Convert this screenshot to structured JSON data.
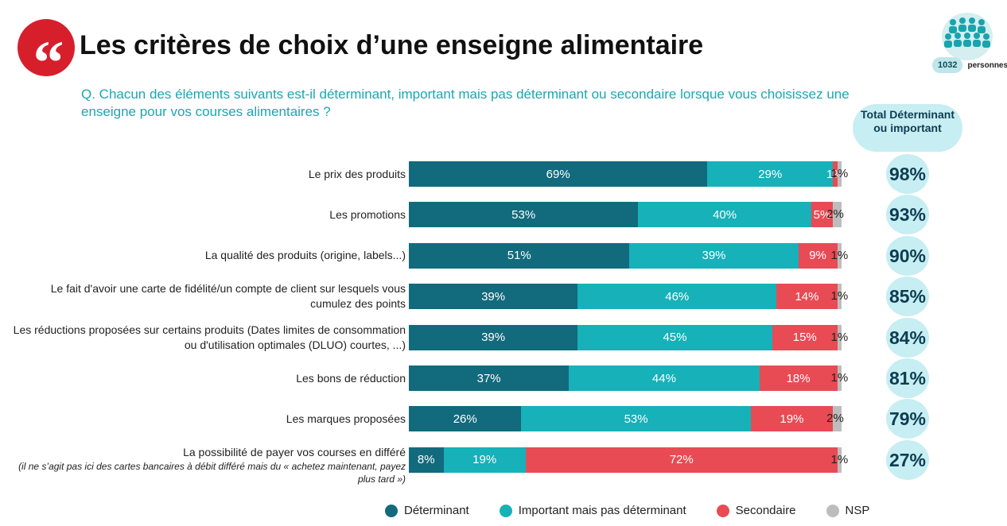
{
  "header": {
    "title": "Les critères de choix d’une enseigne alimentaire",
    "question": "Q. Chacun des éléments suivants est-il déterminant, important mais pas déterminant ou secondaire lorsque vous choisissez une enseigne pour vos courses alimentaires ?",
    "sample_count": "1032",
    "sample_label": "personnes",
    "total_header": "Total Déterminant ou important"
  },
  "colors": {
    "determinant": "#126a7d",
    "important": "#16b1b9",
    "secondaire": "#e84b54",
    "nsp": "#bdbdbd"
  },
  "chart_data": {
    "type": "bar",
    "orientation": "horizontal",
    "stacked": true,
    "title": "Les critères de choix d’une enseigne alimentaire",
    "series_names": [
      "Déterminant",
      "Important mais pas déterminant",
      "Secondaire",
      "NSP"
    ],
    "categories": [
      "Le prix des produits",
      "Les promotions",
      "La qualité des produits (origine, labels...)",
      "Le fait d'avoir une carte de fidélité/un compte de client sur lesquels vous cumulez des points",
      "Les réductions proposées sur certains produits (Dates limites de consommation ou d'utilisation optimales (DLUO) courtes, ...)",
      "Les bons de réduction",
      "Les marques proposées",
      "La possibilité de payer vos courses en différé"
    ],
    "rows": [
      {
        "label": "Le prix des produits",
        "sub": "",
        "values": [
          69,
          29,
          1,
          1
        ],
        "labels": [
          "69%",
          "29%",
          "1%",
          "1%"
        ],
        "total": "98%"
      },
      {
        "label": "Les promotions",
        "sub": "",
        "values": [
          53,
          40,
          5,
          2
        ],
        "labels": [
          "53%",
          "40%",
          "5%",
          "2%"
        ],
        "total": "93%"
      },
      {
        "label": "La qualité des produits (origine, labels...)",
        "sub": "",
        "values": [
          51,
          39,
          9,
          1
        ],
        "labels": [
          "51%",
          "39%",
          "9%",
          "1%"
        ],
        "total": "90%"
      },
      {
        "label": "Le fait d'avoir une carte de fidélité/un compte de client sur lesquels vous cumulez des points",
        "sub": "",
        "values": [
          39,
          46,
          14,
          1
        ],
        "labels": [
          "39%",
          "46%",
          "14%",
          "1%"
        ],
        "total": "85%"
      },
      {
        "label": "Les réductions proposées sur certains produits (Dates limites de consommation ou d'utilisation optimales (DLUO) courtes, ...)",
        "sub": "",
        "values": [
          39,
          45,
          15,
          1
        ],
        "labels": [
          "39%",
          "45%",
          "15%",
          "1%"
        ],
        "total": "84%"
      },
      {
        "label": "Les bons de réduction",
        "sub": "",
        "values": [
          37,
          44,
          18,
          1
        ],
        "labels": [
          "37%",
          "44%",
          "18%",
          "1%"
        ],
        "total": "81%"
      },
      {
        "label": "Les marques proposées",
        "sub": "",
        "values": [
          26,
          53,
          19,
          2
        ],
        "labels": [
          "26%",
          "53%",
          "19%",
          "2%"
        ],
        "total": "79%"
      },
      {
        "label": "La possibilité de payer vos courses en différé",
        "sub": "(il ne s’agit pas ici des cartes bancaires à débit différé mais du « achetez maintenant, payez plus tard »)",
        "values": [
          8,
          19,
          72,
          1
        ],
        "labels": [
          "8%",
          "19%",
          "72%",
          "1%"
        ],
        "total": "27%"
      }
    ],
    "xlim": [
      0,
      100
    ]
  },
  "legend": [
    {
      "label": "Déterminant",
      "color": "#126a7d"
    },
    {
      "label": "Important mais pas déterminant",
      "color": "#16b1b9"
    },
    {
      "label": "Secondaire",
      "color": "#e84b54"
    },
    {
      "label": "NSP",
      "color": "#bdbdbd"
    }
  ]
}
